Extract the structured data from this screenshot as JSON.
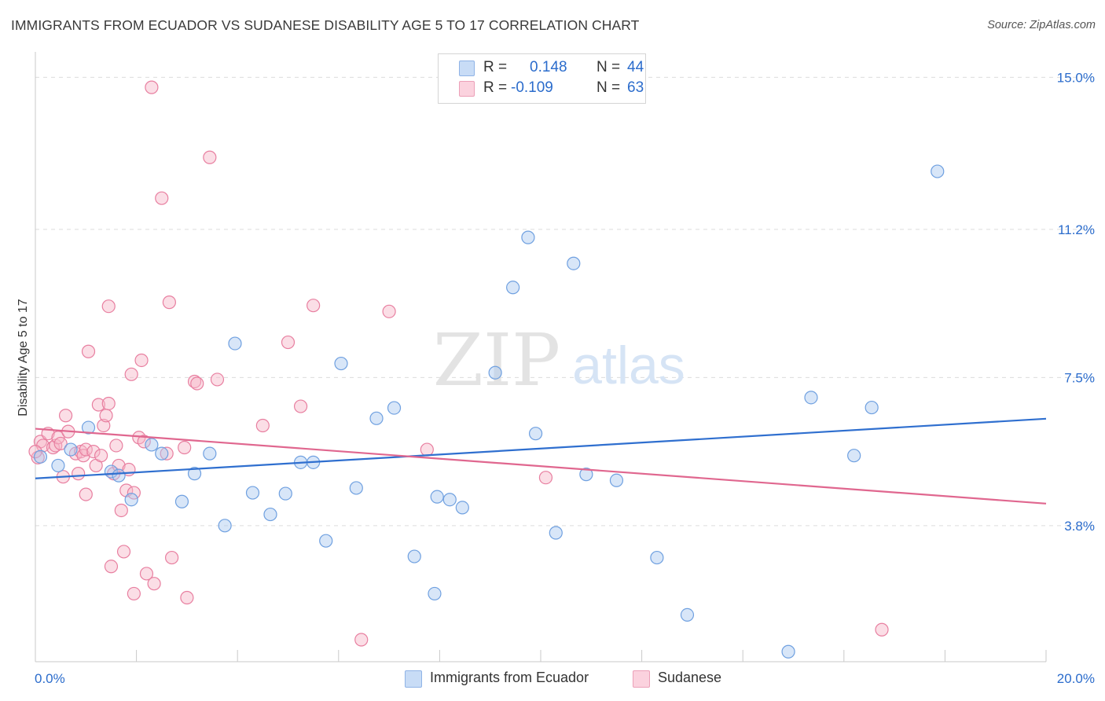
{
  "header": {
    "title": "IMMIGRANTS FROM ECUADOR VS SUDANESE DISABILITY AGE 5 TO 17 CORRELATION CHART",
    "source": "Source: ZipAtlas.com"
  },
  "watermark": {
    "zip": "ZIP",
    "atlas": "atlas"
  },
  "legend": {
    "rows": [
      {
        "r_label": "R =",
        "r_value": "0.148",
        "n_label": "N =",
        "n_value": "44",
        "color": "#a9c8f0"
      },
      {
        "r_label": "R =",
        "r_value": "-0.109",
        "n_label": "N =",
        "n_value": "63",
        "color": "#f6b6c8"
      }
    ]
  },
  "bottom_legend": {
    "items": [
      {
        "label": "Immigrants from Ecuador",
        "color": "#a9c8f0"
      },
      {
        "label": "Sudanese",
        "color": "#f6b6c8"
      }
    ]
  },
  "chart_data": {
    "type": "scatter",
    "title": "IMMIGRANTS FROM ECUADOR VS SUDANESE DISABILITY AGE 5 TO 17 CORRELATION CHART",
    "xlabel": "",
    "ylabel": "Disability Age 5 to 17",
    "xlim": [
      0,
      20
    ],
    "ylim": [
      0.4,
      15.4
    ],
    "x_tick_labels": [
      "0.0%",
      "20.0%"
    ],
    "y_ticks": [
      3.8,
      7.5,
      11.2,
      15.0
    ],
    "y_tick_labels": [
      "3.8%",
      "7.5%",
      "11.2%",
      "15.0%"
    ],
    "grid": "horizontal dashed",
    "legend_position": "top-center",
    "series": [
      {
        "name": "Immigrants from Ecuador",
        "color": "#6fa0e0",
        "fill": "#a9c8f0",
        "trend": {
          "x": [
            0,
            20
          ],
          "y": [
            4.98,
            6.47
          ]
        },
        "points": [
          [
            0.1,
            5.52
          ],
          [
            0.45,
            5.3
          ],
          [
            0.7,
            5.7
          ],
          [
            1.05,
            6.25
          ],
          [
            1.5,
            5.15
          ],
          [
            1.65,
            5.05
          ],
          [
            1.9,
            4.45
          ],
          [
            2.3,
            5.82
          ],
          [
            2.5,
            5.6
          ],
          [
            2.9,
            4.4
          ],
          [
            3.15,
            5.1
          ],
          [
            3.45,
            5.6
          ],
          [
            3.75,
            3.8
          ],
          [
            3.95,
            8.35
          ],
          [
            4.3,
            4.62
          ],
          [
            4.65,
            4.08
          ],
          [
            4.95,
            4.6
          ],
          [
            5.25,
            5.38
          ],
          [
            5.5,
            5.38
          ],
          [
            5.75,
            3.42
          ],
          [
            6.05,
            7.85
          ],
          [
            6.35,
            4.74
          ],
          [
            6.75,
            6.48
          ],
          [
            7.1,
            6.74
          ],
          [
            7.5,
            3.03
          ],
          [
            7.9,
            2.1
          ],
          [
            7.95,
            4.52
          ],
          [
            8.2,
            4.45
          ],
          [
            8.45,
            4.25
          ],
          [
            9.1,
            7.62
          ],
          [
            9.45,
            9.75
          ],
          [
            9.75,
            11.0
          ],
          [
            9.9,
            6.1
          ],
          [
            10.3,
            3.62
          ],
          [
            10.65,
            10.35
          ],
          [
            10.9,
            5.08
          ],
          [
            11.5,
            4.93
          ],
          [
            12.3,
            3.0
          ],
          [
            12.9,
            1.57
          ],
          [
            14.9,
            0.65
          ],
          [
            15.35,
            7.0
          ],
          [
            16.2,
            5.55
          ],
          [
            16.55,
            6.75
          ],
          [
            17.85,
            12.65
          ]
        ]
      },
      {
        "name": "Sudanese",
        "color": "#e87fa0",
        "fill": "#f6b6c8",
        "trend": {
          "x": [
            0,
            20
          ],
          "y": [
            6.22,
            4.35
          ]
        },
        "points": [
          [
            0.05,
            5.5
          ],
          [
            0.1,
            5.9
          ],
          [
            0.15,
            5.8
          ],
          [
            0.25,
            6.1
          ],
          [
            0.35,
            5.75
          ],
          [
            0.4,
            5.8
          ],
          [
            0.45,
            6.0
          ],
          [
            0.5,
            5.85
          ],
          [
            0.55,
            5.02
          ],
          [
            0.6,
            6.55
          ],
          [
            0.65,
            6.15
          ],
          [
            0.8,
            5.6
          ],
          [
            0.85,
            5.1
          ],
          [
            0.9,
            5.65
          ],
          [
            0.95,
            5.55
          ],
          [
            1.0,
            5.7
          ],
          [
            1.0,
            4.58
          ],
          [
            1.05,
            8.15
          ],
          [
            1.15,
            5.65
          ],
          [
            1.2,
            5.3
          ],
          [
            1.25,
            6.82
          ],
          [
            1.3,
            5.55
          ],
          [
            1.35,
            6.3
          ],
          [
            1.4,
            6.55
          ],
          [
            1.45,
            6.85
          ],
          [
            1.45,
            9.28
          ],
          [
            1.5,
            2.78
          ],
          [
            1.55,
            5.1
          ],
          [
            1.6,
            5.8
          ],
          [
            1.65,
            5.3
          ],
          [
            1.7,
            4.18
          ],
          [
            1.75,
            3.15
          ],
          [
            1.8,
            4.68
          ],
          [
            1.85,
            5.2
          ],
          [
            1.9,
            7.58
          ],
          [
            1.95,
            4.62
          ],
          [
            1.95,
            2.1
          ],
          [
            2.05,
            6.0
          ],
          [
            2.1,
            7.93
          ],
          [
            2.15,
            5.9
          ],
          [
            2.2,
            2.6
          ],
          [
            2.3,
            14.75
          ],
          [
            2.35,
            2.35
          ],
          [
            2.5,
            11.98
          ],
          [
            2.6,
            5.6
          ],
          [
            2.65,
            9.38
          ],
          [
            2.7,
            3.0
          ],
          [
            2.95,
            5.75
          ],
          [
            3.0,
            2.0
          ],
          [
            3.15,
            7.4
          ],
          [
            3.2,
            7.35
          ],
          [
            3.45,
            13.0
          ],
          [
            3.6,
            7.45
          ],
          [
            4.5,
            6.3
          ],
          [
            5.0,
            8.38
          ],
          [
            5.25,
            6.78
          ],
          [
            5.5,
            9.3
          ],
          [
            6.45,
            0.95
          ],
          [
            7.0,
            9.15
          ],
          [
            7.75,
            5.7
          ],
          [
            10.1,
            5.0
          ],
          [
            16.75,
            1.2
          ],
          [
            0.0,
            5.65
          ]
        ]
      }
    ]
  }
}
